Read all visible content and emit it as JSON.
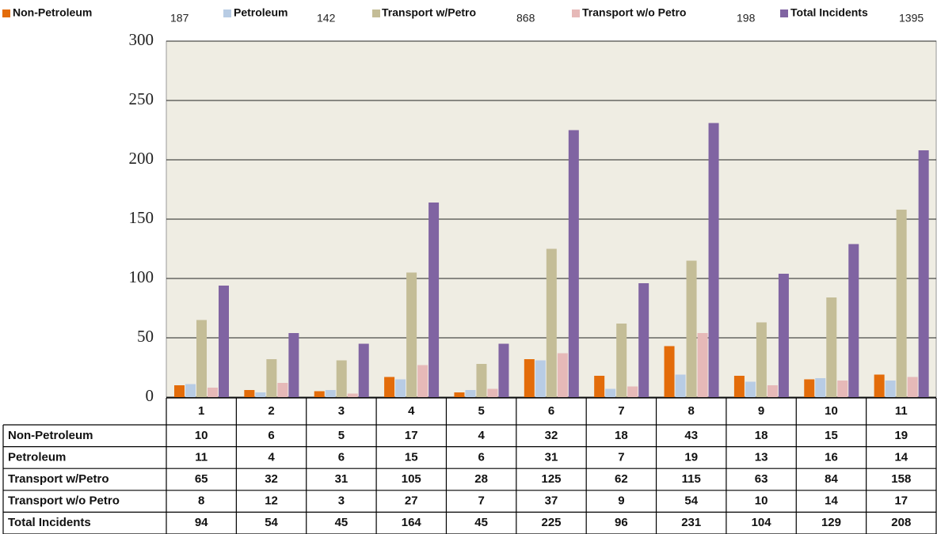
{
  "chart_data": {
    "type": "bar",
    "categories": [
      "1",
      "2",
      "3",
      "4",
      "5",
      "6",
      "7",
      "8",
      "9",
      "10",
      "11"
    ],
    "series": [
      {
        "name": "Non-Petroleum",
        "color": "#e36c0a",
        "total": 187,
        "values": [
          10,
          6,
          5,
          17,
          4,
          32,
          18,
          43,
          18,
          15,
          19
        ]
      },
      {
        "name": "Petroleum",
        "color": "#b8cce4",
        "total": 142,
        "values": [
          11,
          4,
          6,
          15,
          6,
          31,
          7,
          19,
          13,
          16,
          14
        ]
      },
      {
        "name": "Transport w/Petro",
        "color": "#c4bd97",
        "total": 868,
        "values": [
          65,
          32,
          31,
          105,
          28,
          125,
          62,
          115,
          63,
          84,
          158
        ]
      },
      {
        "name": "Transport w/o Petro",
        "color": "#e6b9b8",
        "total": 198,
        "values": [
          8,
          12,
          3,
          27,
          7,
          37,
          9,
          54,
          10,
          14,
          17
        ]
      },
      {
        "name": "Total Incidents",
        "color": "#8064a2",
        "total": 1395,
        "values": [
          94,
          54,
          45,
          164,
          45,
          225,
          96,
          231,
          104,
          129,
          208
        ]
      }
    ],
    "ylim": [
      0,
      300
    ],
    "yticks": [
      0,
      50,
      100,
      150,
      200,
      250,
      300
    ],
    "grid": true,
    "legend": "top"
  }
}
